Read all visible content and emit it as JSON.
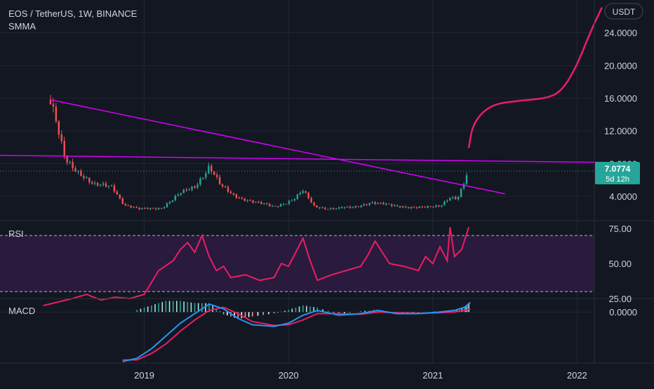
{
  "header": {
    "symbol_line": "EOS / TetherUS, 1W, BINANCE",
    "indicator_label": "SMMA"
  },
  "currency_badge": "USDT",
  "last_price": {
    "value": "7.0774",
    "countdown": "5d 12h"
  },
  "colors": {
    "background": "#131722",
    "grid": "#232632",
    "candle_up": "#26a69a",
    "candle_down": "#ef5350",
    "trendline": "#d500f9",
    "projection": "#e91e63",
    "rsi_line": "#e91e63",
    "rsi_band": "#2a1a3d",
    "macd_line": "#2196f3",
    "signal_line": "#e91e63",
    "price_badge": "#26a69a"
  },
  "chart_data": [
    {
      "type": "candlestick",
      "pane": "price",
      "ylim": [
        1,
        28
      ],
      "y_ticks": [
        "24.0000",
        "20.0000",
        "16.0000",
        "12.0000",
        "8.0000",
        "4.0000"
      ],
      "x_ticks": [
        "2019",
        "2020",
        "2021",
        "2022",
        "202"
      ],
      "xlim": [
        2018.0,
        2022.12
      ],
      "ohlc_anchors": [
        {
          "x": 2018.35,
          "close": 15.5
        },
        {
          "x": 2018.4,
          "close": 12.0
        },
        {
          "x": 2018.45,
          "close": 8.5
        },
        {
          "x": 2018.55,
          "close": 7.0
        },
        {
          "x": 2018.65,
          "close": 5.3
        },
        {
          "x": 2018.78,
          "close": 5.2
        },
        {
          "x": 2018.86,
          "close": 3.0
        },
        {
          "x": 2018.96,
          "close": 2.4
        },
        {
          "x": 2019.12,
          "close": 2.6
        },
        {
          "x": 2019.25,
          "close": 4.3
        },
        {
          "x": 2019.35,
          "close": 5.2
        },
        {
          "x": 2019.45,
          "close": 7.7
        },
        {
          "x": 2019.53,
          "close": 5.2
        },
        {
          "x": 2019.62,
          "close": 4.1
        },
        {
          "x": 2019.78,
          "close": 3.2
        },
        {
          "x": 2019.9,
          "close": 2.7
        },
        {
          "x": 2020.03,
          "close": 3.6
        },
        {
          "x": 2020.1,
          "close": 4.6
        },
        {
          "x": 2020.18,
          "close": 2.7
        },
        {
          "x": 2020.3,
          "close": 2.5
        },
        {
          "x": 2020.45,
          "close": 2.6
        },
        {
          "x": 2020.57,
          "close": 3.3
        },
        {
          "x": 2020.72,
          "close": 2.8
        },
        {
          "x": 2020.85,
          "close": 2.7
        },
        {
          "x": 2020.97,
          "close": 2.6
        },
        {
          "x": 2021.05,
          "close": 2.8
        },
        {
          "x": 2021.12,
          "close": 4.0
        },
        {
          "x": 2021.17,
          "close": 3.7
        },
        {
          "x": 2021.21,
          "close": 5.3
        },
        {
          "x": 2021.25,
          "close": 7.08
        }
      ],
      "annotations": {
        "descending_trendline": [
          {
            "x": 2018.35,
            "y": 15.8
          },
          {
            "x": 2021.5,
            "y": 4.3
          }
        ],
        "horizontal_trendline": [
          {
            "x": 2018.0,
            "y": 9.0
          },
          {
            "x": 2022.4,
            "y": 8.1
          }
        ],
        "projection_curve": [
          {
            "x": 2021.25,
            "y": 10.0
          },
          {
            "x": 2021.28,
            "y": 13.0
          },
          {
            "x": 2021.4,
            "y": 15.2
          },
          {
            "x": 2021.6,
            "y": 15.7
          },
          {
            "x": 2021.8,
            "y": 16.0
          },
          {
            "x": 2021.9,
            "y": 17.0
          },
          {
            "x": 2022.0,
            "y": 20.0
          },
          {
            "x": 2022.09,
            "y": 24.0
          },
          {
            "x": 2022.17,
            "y": 27.0
          }
        ]
      },
      "last_price": 7.0774
    },
    {
      "type": "line",
      "pane": "rsi",
      "title": "RSI",
      "ylim": [
        25,
        80
      ],
      "y_ticks": [
        "75.00",
        "50.00",
        "25.00"
      ],
      "bands": [
        30,
        70
      ],
      "series": [
        {
          "x": [
            2018.3,
            2018.5,
            2018.6,
            2018.7,
            2018.8,
            2018.9,
            2019.0,
            2019.1,
            2019.2,
            2019.25,
            2019.3,
            2019.35,
            2019.4,
            2019.45,
            2019.5,
            2019.55,
            2019.6,
            2019.7,
            2019.8,
            2019.9,
            2019.95,
            2020.0,
            2020.07,
            2020.1,
            2020.15,
            2020.2,
            2020.3,
            2020.4,
            2020.5,
            2020.55,
            2020.6,
            2020.7,
            2020.8,
            2020.9,
            2020.95,
            2021.0,
            2021.05,
            2021.1,
            2021.12,
            2021.15,
            2021.2,
            2021.25
          ],
          "values": [
            20,
            25,
            28,
            24,
            26,
            25,
            28,
            45,
            52,
            60,
            65,
            58,
            70,
            55,
            45,
            48,
            40,
            42,
            38,
            40,
            50,
            48,
            62,
            68,
            52,
            38,
            42,
            45,
            48,
            56,
            66,
            50,
            48,
            45,
            55,
            50,
            62,
            52,
            76,
            55,
            60,
            76
          ]
        }
      ]
    },
    {
      "type": "line",
      "pane": "macd",
      "title": "MACD",
      "ylim": [
        -1.6,
        0.4
      ],
      "y_ticks": [
        "0.0000"
      ],
      "series": [
        {
          "role": "macd",
          "x": [
            2018.85,
            2018.95,
            2019.05,
            2019.15,
            2019.25,
            2019.35,
            2019.45,
            2019.55,
            2019.65,
            2019.75,
            2019.9,
            2020.0,
            2020.1,
            2020.2,
            2020.35,
            2020.5,
            2020.62,
            2020.75,
            2020.9,
            2021.05,
            2021.15,
            2021.22,
            2021.26
          ],
          "values": [
            -1.55,
            -1.45,
            -1.15,
            -0.75,
            -0.35,
            -0.05,
            0.25,
            0.1,
            -0.2,
            -0.4,
            -0.45,
            -0.35,
            -0.1,
            0.05,
            -0.1,
            -0.05,
            0.05,
            -0.05,
            -0.05,
            0.0,
            0.05,
            0.15,
            0.3
          ]
        },
        {
          "role": "signal",
          "x": [
            2018.85,
            2018.95,
            2019.05,
            2019.15,
            2019.25,
            2019.35,
            2019.45,
            2019.55,
            2019.65,
            2019.75,
            2019.9,
            2020.0,
            2020.1,
            2020.2,
            2020.35,
            2020.5,
            2020.62,
            2020.75,
            2020.9,
            2021.05,
            2021.15,
            2021.22,
            2021.26
          ],
          "values": [
            -1.5,
            -1.5,
            -1.3,
            -1.0,
            -0.6,
            -0.25,
            0.05,
            0.15,
            -0.05,
            -0.3,
            -0.42,
            -0.4,
            -0.25,
            -0.05,
            -0.05,
            -0.07,
            0.0,
            -0.02,
            -0.04,
            -0.02,
            0.0,
            0.05,
            0.1
          ]
        }
      ]
    }
  ]
}
